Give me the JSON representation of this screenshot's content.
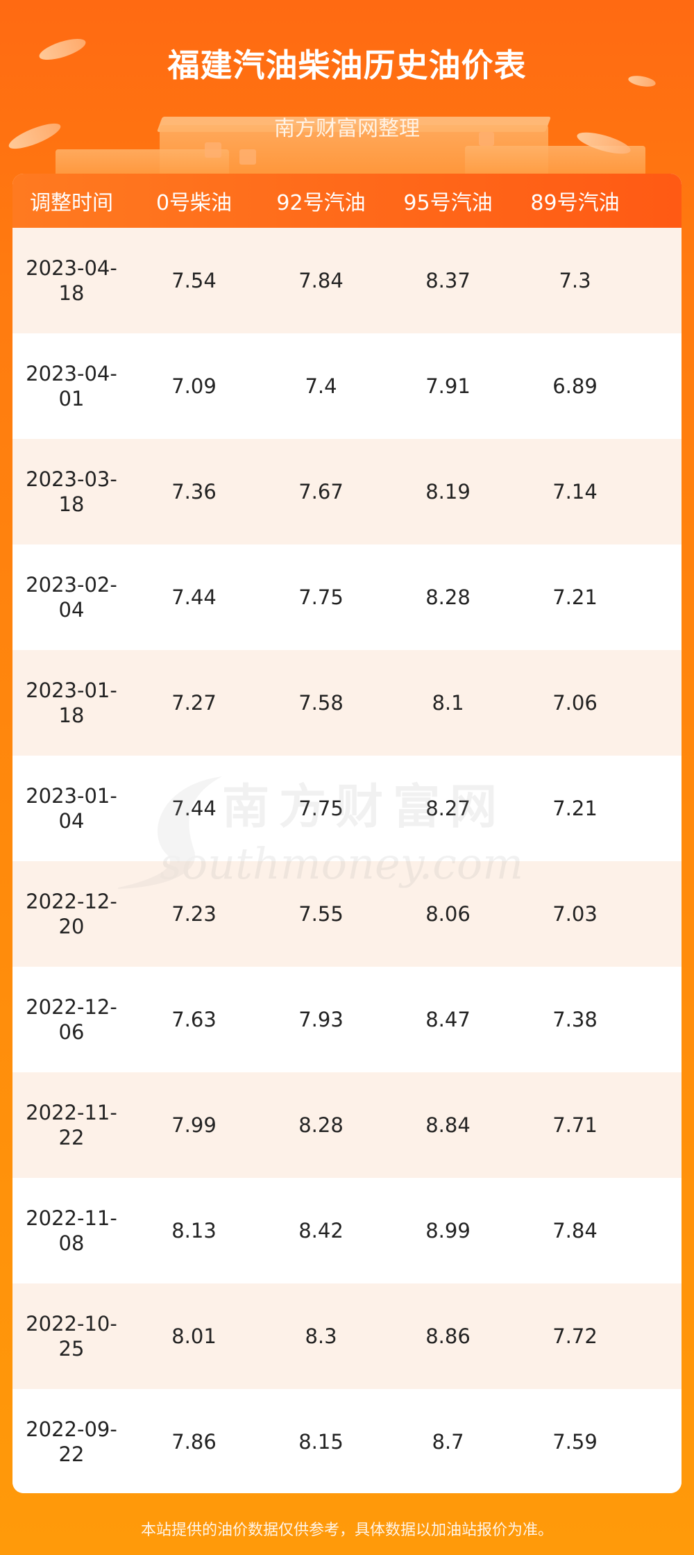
{
  "header": {
    "title": "福建汽油柴油历史油价表",
    "subtitle": "南方财富网整理"
  },
  "table": {
    "columns": [
      "调整时间",
      "0号柴油",
      "92号汽油",
      "95号汽油",
      "89号汽油"
    ],
    "rows": [
      {
        "date_l1": "2023-04-",
        "date_l2": "18",
        "d0": "7.54",
        "g92": "7.84",
        "g95": "8.37",
        "g89": "7.3"
      },
      {
        "date_l1": "2023-04-",
        "date_l2": "01",
        "d0": "7.09",
        "g92": "7.4",
        "g95": "7.91",
        "g89": "6.89"
      },
      {
        "date_l1": "2023-03-",
        "date_l2": "18",
        "d0": "7.36",
        "g92": "7.67",
        "g95": "8.19",
        "g89": "7.14"
      },
      {
        "date_l1": "2023-02-",
        "date_l2": "04",
        "d0": "7.44",
        "g92": "7.75",
        "g95": "8.28",
        "g89": "7.21"
      },
      {
        "date_l1": "2023-01-",
        "date_l2": "18",
        "d0": "7.27",
        "g92": "7.58",
        "g95": "8.1",
        "g89": "7.06"
      },
      {
        "date_l1": "2023-01-",
        "date_l2": "04",
        "d0": "7.44",
        "g92": "7.75",
        "g95": "8.27",
        "g89": "7.21"
      },
      {
        "date_l1": "2022-12-",
        "date_l2": "20",
        "d0": "7.23",
        "g92": "7.55",
        "g95": "8.06",
        "g89": "7.03"
      },
      {
        "date_l1": "2022-12-",
        "date_l2": "06",
        "d0": "7.63",
        "g92": "7.93",
        "g95": "8.47",
        "g89": "7.38"
      },
      {
        "date_l1": "2022-11-",
        "date_l2": "22",
        "d0": "7.99",
        "g92": "8.28",
        "g95": "8.84",
        "g89": "7.71"
      },
      {
        "date_l1": "2022-11-",
        "date_l2": "08",
        "d0": "8.13",
        "g92": "8.42",
        "g95": "8.99",
        "g89": "7.84"
      },
      {
        "date_l1": "2022-10-",
        "date_l2": "25",
        "d0": "8.01",
        "g92": "8.3",
        "g95": "8.86",
        "g89": "7.72"
      },
      {
        "date_l1": "2022-09-",
        "date_l2": "22",
        "d0": "7.86",
        "g92": "8.15",
        "g95": "8.7",
        "g89": "7.59"
      }
    ]
  },
  "watermark": {
    "cn": "南方财富网",
    "en": "southmoney.com"
  },
  "footer": {
    "note": "本站提供的油价数据仅供参考，具体数据以加油站报价为准。"
  },
  "colors": {
    "header_bg": "#ff6a12",
    "table_head": "#ff6a1a",
    "row_alt": "#fdf1e8"
  }
}
